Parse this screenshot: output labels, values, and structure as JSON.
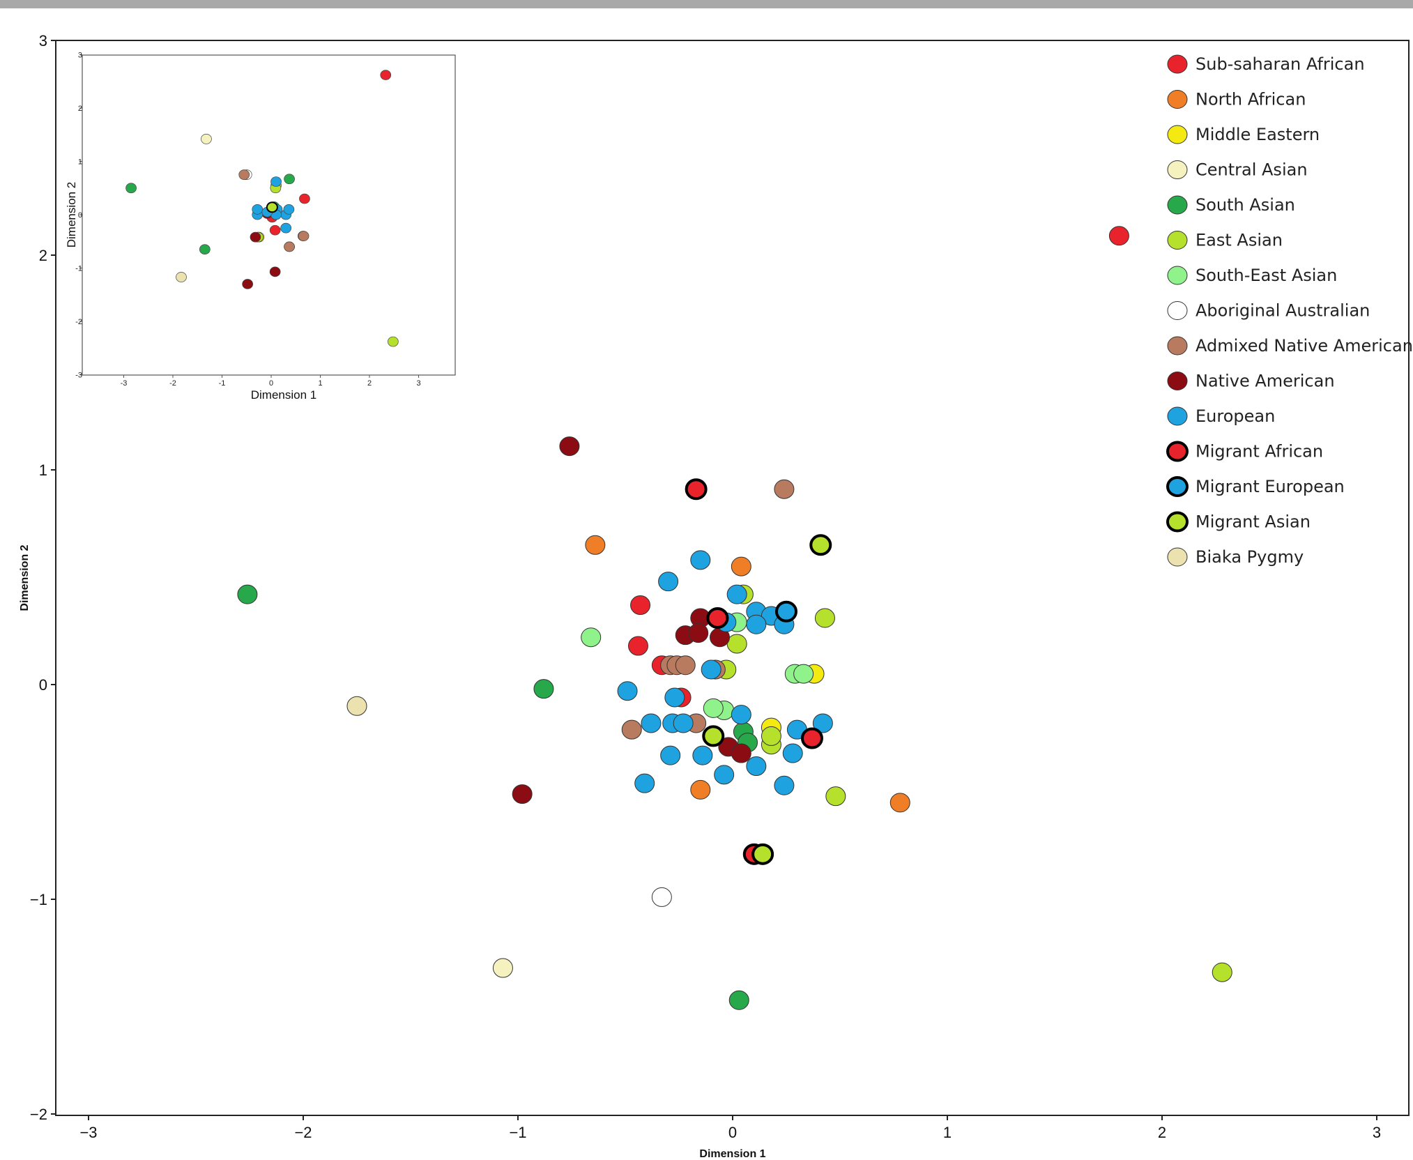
{
  "colors": {
    "Sub-saharan African": "#e8232b",
    "North African": "#f07e26",
    "Middle Eastern": "#f4ea12",
    "Central Asian": "#f5f2c0",
    "South Asian": "#27a84b",
    "East Asian": "#b5e02c",
    "South-East Asian": "#8ff28a",
    "Aboriginal Australian": "#ffffff",
    "Admixed Native American": "#b97b60",
    "Native American": "#8b0c12",
    "European": "#1ea3e0",
    "Migrant African": "#e8232b",
    "Migrant European": "#1ea3e0",
    "Migrant Asian": "#b5e02c",
    "Biaka Pygmy": "#ece2b0"
  },
  "chart_data": [
    {
      "type": "scatter",
      "title": "",
      "xlabel": "Dimension 1",
      "ylabel": "Dimension 2",
      "xlim": [
        -3.1,
        3.1
      ],
      "ylim": [
        -2,
        3
      ],
      "xticks": [
        -3,
        -2,
        -1,
        0,
        1,
        2,
        3
      ],
      "yticks": [
        -2,
        -1,
        0,
        1,
        2,
        3
      ],
      "xtick_labels": [
        "−3",
        "−2",
        "−1",
        "0",
        "1",
        "2",
        "3"
      ],
      "ytick_labels": [
        "−2",
        "−1",
        "0",
        "1",
        "2",
        "3"
      ],
      "grid": false,
      "legend_position": "top-right",
      "legend": [
        "Sub-saharan African",
        "North African",
        "Middle Eastern",
        "Central Asian",
        "South Asian",
        "East Asian",
        "South-East Asian",
        "Aboriginal Australian",
        "Admixed Native American",
        "Native American",
        "European",
        "Migrant African",
        "Migrant European",
        "Migrant Asian",
        "Biaka Pygmy"
      ],
      "series": [
        {
          "name": "Sub-saharan African",
          "points": [
            [
              1.8,
              2.09
            ],
            [
              -0.43,
              0.37
            ],
            [
              -0.44,
              0.18
            ],
            [
              -0.33,
              0.09
            ],
            [
              -0.24,
              -0.06
            ]
          ]
        },
        {
          "name": "North African",
          "points": [
            [
              -0.64,
              0.65
            ],
            [
              0.04,
              0.55
            ],
            [
              -0.15,
              -0.49
            ],
            [
              0.78,
              -0.55
            ]
          ]
        },
        {
          "name": "Middle Eastern",
          "points": [
            [
              0.38,
              0.05
            ],
            [
              0.18,
              -0.2
            ]
          ]
        },
        {
          "name": "Central Asian",
          "points": [
            [
              -1.07,
              -1.32
            ]
          ]
        },
        {
          "name": "South Asian",
          "points": [
            [
              -2.26,
              0.42
            ],
            [
              -0.88,
              -0.02
            ],
            [
              0.05,
              -0.22
            ],
            [
              0.07,
              -0.27
            ],
            [
              0.03,
              -1.47
            ]
          ]
        },
        {
          "name": "East Asian",
          "points": [
            [
              2.28,
              -1.34
            ],
            [
              0.43,
              0.31
            ],
            [
              0.48,
              -0.52
            ],
            [
              0.05,
              0.42
            ],
            [
              0.02,
              0.19
            ],
            [
              -0.03,
              0.07
            ],
            [
              0.18,
              -0.28
            ],
            [
              0.18,
              -0.24
            ]
          ]
        },
        {
          "name": "South-East Asian",
          "points": [
            [
              -0.66,
              0.22
            ],
            [
              0.02,
              0.29
            ],
            [
              -0.04,
              -0.12
            ],
            [
              -0.09,
              -0.11
            ],
            [
              0.29,
              0.05
            ],
            [
              0.33,
              0.05
            ]
          ]
        },
        {
          "name": "Aboriginal Australian",
          "points": [
            [
              -0.33,
              -0.99
            ]
          ]
        },
        {
          "name": "Admixed Native American",
          "points": [
            [
              0.24,
              0.91
            ],
            [
              -0.29,
              0.09
            ],
            [
              -0.26,
              0.09
            ],
            [
              -0.22,
              0.09
            ],
            [
              -0.47,
              -0.21
            ],
            [
              -0.17,
              -0.18
            ],
            [
              -0.08,
              0.07
            ]
          ]
        },
        {
          "name": "Native American",
          "points": [
            [
              -0.76,
              1.11
            ],
            [
              -0.98,
              -0.51
            ],
            [
              -0.15,
              0.31
            ],
            [
              -0.22,
              0.23
            ],
            [
              -0.16,
              0.24
            ],
            [
              -0.06,
              0.22
            ],
            [
              -0.02,
              -0.29
            ],
            [
              0.04,
              -0.32
            ]
          ]
        },
        {
          "name": "European",
          "points": [
            [
              -0.3,
              0.48
            ],
            [
              -0.15,
              0.58
            ],
            [
              0.02,
              0.42
            ],
            [
              0.11,
              0.34
            ],
            [
              0.18,
              0.32
            ],
            [
              0.24,
              0.28
            ],
            [
              0.11,
              0.28
            ],
            [
              -0.03,
              0.29
            ],
            [
              -0.49,
              -0.03
            ],
            [
              -0.38,
              -0.18
            ],
            [
              -0.28,
              -0.18
            ],
            [
              -0.23,
              -0.18
            ],
            [
              -0.27,
              -0.06
            ],
            [
              -0.14,
              -0.33
            ],
            [
              -0.29,
              -0.33
            ],
            [
              0.04,
              -0.14
            ],
            [
              0.11,
              -0.38
            ],
            [
              -0.04,
              -0.42
            ],
            [
              -0.41,
              -0.46
            ],
            [
              0.24,
              -0.47
            ],
            [
              0.3,
              -0.21
            ],
            [
              0.42,
              -0.18
            ],
            [
              0.28,
              -0.32
            ],
            [
              -0.1,
              0.07
            ]
          ]
        },
        {
          "name": "Migrant African",
          "points": [
            [
              -0.17,
              0.91
            ],
            [
              -0.07,
              0.31
            ],
            [
              0.37,
              -0.25
            ],
            [
              0.1,
              -0.79
            ]
          ]
        },
        {
          "name": "Migrant European",
          "points": [
            [
              0.25,
              0.34
            ]
          ]
        },
        {
          "name": "Migrant Asian",
          "points": [
            [
              0.41,
              0.65
            ],
            [
              -0.09,
              -0.24
            ],
            [
              0.14,
              -0.79
            ]
          ]
        },
        {
          "name": "Biaka Pygmy",
          "points": [
            [
              -1.75,
              -0.1
            ]
          ]
        }
      ]
    },
    {
      "type": "scatter",
      "title": "",
      "xlabel": "Dimension 1",
      "ylabel": "Dimension 2",
      "xlim": [
        -3.6,
        3.6
      ],
      "ylim": [
        -3,
        3
      ],
      "xticks": [
        -3,
        -2,
        -1,
        0,
        1,
        2,
        3
      ],
      "yticks": [
        -3,
        -2,
        -1,
        0,
        1,
        2,
        3
      ],
      "xtick_labels": [
        "-3",
        "-2",
        "-1",
        "0",
        "1",
        "2",
        "3"
      ],
      "ytick_labels": [
        "-3",
        "-2",
        "-1",
        "0",
        "1",
        "2",
        "3"
      ],
      "grid": false,
      "series": [
        {
          "name": "Sub-saharan African",
          "points": [
            [
              2.33,
              2.62
            ],
            [
              0.68,
              0.3
            ],
            [
              0.08,
              -0.29
            ],
            [
              0.02,
              -0.05
            ]
          ]
        },
        {
          "name": "North African",
          "points": [
            [
              0.37,
              -0.6
            ],
            [
              0.65,
              -0.4
            ]
          ]
        },
        {
          "name": "Middle Eastern",
          "points": [
            [
              0.02,
              0.12
            ],
            [
              -0.25,
              -0.42
            ]
          ]
        },
        {
          "name": "Central Asian",
          "points": [
            [
              -1.32,
              1.42
            ]
          ]
        },
        {
          "name": "South Asian",
          "points": [
            [
              -2.85,
              0.5
            ],
            [
              -1.35,
              -0.65
            ],
            [
              0.37,
              0.67
            ],
            [
              0.06,
              0.15
            ]
          ]
        },
        {
          "name": "East Asian",
          "points": [
            [
              2.48,
              -2.38
            ],
            [
              0.1,
              0.55
            ],
            [
              0.09,
              0.5
            ],
            [
              -0.27,
              -0.42
            ]
          ]
        },
        {
          "name": "South-East Asian",
          "points": [
            [
              0.0,
              0.08
            ]
          ]
        },
        {
          "name": "Aboriginal Australian",
          "points": [
            [
              -0.5,
              0.75
            ]
          ]
        },
        {
          "name": "Admixed Native American",
          "points": [
            [
              0.37,
              -0.6
            ],
            [
              0.66,
              -0.4
            ],
            [
              -0.55,
              0.75
            ]
          ]
        },
        {
          "name": "Native American",
          "points": [
            [
              0.08,
              -1.07
            ],
            [
              -0.48,
              -1.3
            ],
            [
              -0.32,
              -0.42
            ],
            [
              -0.08,
              0.02
            ]
          ]
        },
        {
          "name": "European",
          "points": [
            [
              0.1,
              0.62
            ],
            [
              -0.28,
              0.0
            ],
            [
              -0.28,
              0.1
            ],
            [
              0.3,
              0.0
            ],
            [
              0.36,
              0.1
            ],
            [
              0.12,
              0.1
            ],
            [
              0.3,
              -0.25
            ],
            [
              0.1,
              -0.0
            ],
            [
              -0.08,
              0.05
            ]
          ]
        },
        {
          "name": "Migrant African",
          "points": []
        },
        {
          "name": "Migrant European",
          "points": []
        },
        {
          "name": "Migrant Asian",
          "points": [
            [
              0.02,
              0.14
            ]
          ]
        },
        {
          "name": "Biaka Pygmy",
          "points": [
            [
              -1.83,
              -1.17
            ]
          ]
        }
      ]
    }
  ]
}
